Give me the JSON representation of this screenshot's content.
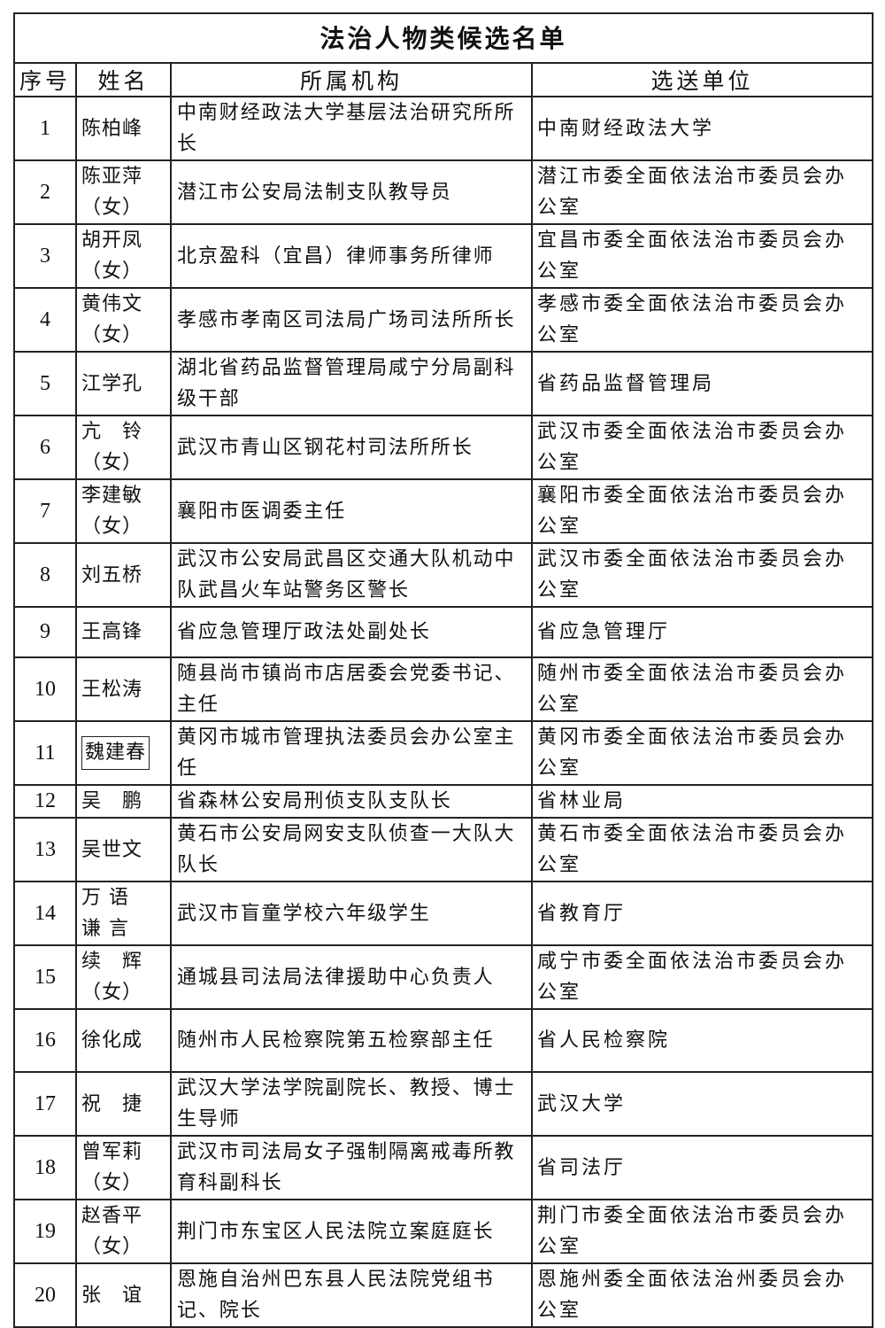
{
  "title": "法治人物类候选名单",
  "columns": [
    "序号",
    "姓名",
    "所属机构",
    "选送单位"
  ],
  "rows": [
    {
      "no": "1",
      "name": "陈柏峰",
      "org": "中南财经政法大学基层法治研究所所长",
      "unit": "中南财经政法大学"
    },
    {
      "no": "2",
      "name": "陈亚萍\n（女）",
      "org": "潜江市公安局法制支队教导员",
      "unit": "潜江市委全面依法治市委员会办公室"
    },
    {
      "no": "3",
      "name": "胡开凤\n（女）",
      "org": "北京盈科（宜昌）律师事务所律师",
      "unit": "宜昌市委全面依法治市委员会办公室"
    },
    {
      "no": "4",
      "name": "黄伟文\n（女）",
      "org": "孝感市孝南区司法局广场司法所所长",
      "unit": "孝感市委全面依法治市委员会办公室"
    },
    {
      "no": "5",
      "name": "江学孔",
      "org": "湖北省药品监督管理局咸宁分局副科级干部",
      "unit": "省药品监督管理局"
    },
    {
      "no": "6",
      "name": "亢　铃\n（女）",
      "org": "武汉市青山区钢花村司法所所长",
      "unit": "武汉市委全面依法治市委员会办公室"
    },
    {
      "no": "7",
      "name": "李建敏\n（女）",
      "org": "襄阳市医调委主任",
      "unit": "襄阳市委全面依法治市委员会办公室"
    },
    {
      "no": "8",
      "name": "刘五桥",
      "org": "武汉市公安局武昌区交通大队机动中队武昌火车站警务区警长",
      "unit": "武汉市委全面依法治市委员会办公室"
    },
    {
      "no": "9",
      "name": "王高锋",
      "org": "省应急管理厅政法处副处长",
      "unit": "省应急管理厅"
    },
    {
      "no": "10",
      "name": "王松涛",
      "org": "随县尚市镇尚市店居委会党委书记、主任",
      "unit": "随州市委全面依法治市委员会办公室"
    },
    {
      "no": "11",
      "name": "魏建春",
      "org": "黄冈市城市管理执法委员会办公室主任",
      "unit": "黄冈市委全面依法治市委员会办公室"
    },
    {
      "no": "12",
      "name": "吴　鹏",
      "org": "省森林公安局刑侦支队支队长",
      "unit": "省林业局"
    },
    {
      "no": "13",
      "name": "吴世文",
      "org": "黄石市公安局网安支队侦查一大队大队长",
      "unit": "黄石市委全面依法治市委员会办公室"
    },
    {
      "no": "14",
      "name": "万 语\n谦 言",
      "org": "武汉市盲童学校六年级学生",
      "unit": "省教育厅"
    },
    {
      "no": "15",
      "name": "续　辉\n（女）",
      "org": "通城县司法局法律援助中心负责人",
      "unit": "咸宁市委全面依法治市委员会办公室"
    },
    {
      "no": "16",
      "name": "徐化成",
      "org": "随州市人民检察院第五检察部主任",
      "unit": "省人民检察院"
    },
    {
      "no": "17",
      "name": "祝　捷",
      "org": "武汉大学法学院副院长、教授、博士生导师",
      "unit": "武汉大学"
    },
    {
      "no": "18",
      "name": "曾军莉\n（女）",
      "org": "武汉市司法局女子强制隔离戒毒所教育科副科长",
      "unit": "省司法厅"
    },
    {
      "no": "19",
      "name": "赵香平\n（女）",
      "org": "荆门市东宝区人民法院立案庭庭长",
      "unit": "荆门市委全面依法治市委员会办公室"
    },
    {
      "no": "20",
      "name": "张　谊",
      "org": "恩施自治州巴东县人民法院党组书记、院长",
      "unit": "恩施州委全面依法治州委员会办公室"
    }
  ]
}
